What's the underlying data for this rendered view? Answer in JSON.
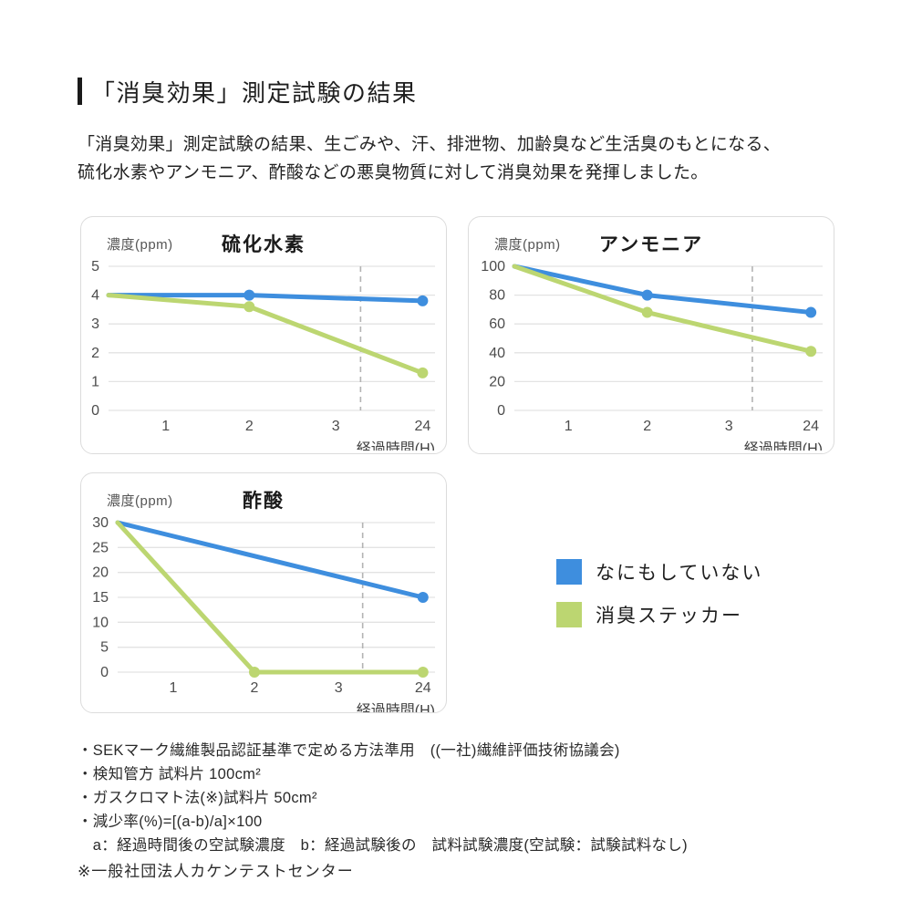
{
  "header": {
    "title": "「消臭効果」測定試験の結果"
  },
  "intro": {
    "line1": "「消臭効果」測定試験の結果、生ごみや、汗、排泄物、加齢臭など生活臭のもとになる、",
    "line2": "硫化水素やアンモニア、酢酸などの悪臭物質に対して消臭効果を発揮しました。"
  },
  "colors": {
    "untreated_blue": "#3e8ede",
    "sticker_green": "#bcd671",
    "accent_bar": "#1a1a1a",
    "gridline": "#e3e3e3",
    "dashed_guide": "#b3b3b3"
  },
  "chart_data": [
    {
      "type": "line",
      "title": "硫化水素",
      "y_axis_label": "濃度(ppm)",
      "x_axis_label": "経過時間(H)",
      "x_ticks": [
        "1",
        "2",
        "3",
        "24"
      ],
      "y_ticks": [
        0,
        1,
        2,
        3,
        4,
        5
      ],
      "ylim": [
        0,
        5
      ],
      "grid": true,
      "dashed_guide": "vertical dashed line between 3 and 24 (time-axis break)",
      "series": [
        {
          "name": "なにもしていない",
          "color": "#3e8ede",
          "points": [
            {
              "t": "start",
              "v": 4
            },
            {
              "t": "2",
              "v": 4
            },
            {
              "t": "24",
              "v": 3.8
            }
          ],
          "markers": [
            "2",
            "24"
          ]
        },
        {
          "name": "消臭ステッカー",
          "color": "#bcd671",
          "points": [
            {
              "t": "start",
              "v": 4
            },
            {
              "t": "2",
              "v": 3.6
            },
            {
              "t": "24",
              "v": 1.3
            }
          ],
          "markers": [
            "2",
            "24"
          ]
        }
      ]
    },
    {
      "type": "line",
      "title": "アンモニア",
      "y_axis_label": "濃度(ppm)",
      "x_axis_label": "経過時間(H)",
      "x_ticks": [
        "1",
        "2",
        "3",
        "24"
      ],
      "y_ticks": [
        0,
        20,
        40,
        60,
        80,
        100
      ],
      "ylim": [
        0,
        100
      ],
      "grid": true,
      "dashed_guide": "vertical dashed line between 3 and 24 (time-axis break)",
      "series": [
        {
          "name": "なにもしていない",
          "color": "#3e8ede",
          "points": [
            {
              "t": "start",
              "v": 100
            },
            {
              "t": "2",
              "v": 80
            },
            {
              "t": "24",
              "v": 68
            }
          ],
          "markers": [
            "2",
            "24"
          ]
        },
        {
          "name": "消臭ステッカー",
          "color": "#bcd671",
          "points": [
            {
              "t": "start",
              "v": 100
            },
            {
              "t": "2",
              "v": 68
            },
            {
              "t": "24",
              "v": 41
            }
          ],
          "markers": [
            "2",
            "24"
          ]
        }
      ]
    },
    {
      "type": "line",
      "title": "酢酸",
      "y_axis_label": "濃度(ppm)",
      "x_axis_label": "経過時間(H)",
      "x_ticks": [
        "1",
        "2",
        "3",
        "24"
      ],
      "y_ticks": [
        0,
        5,
        10,
        15,
        20,
        25,
        30
      ],
      "ylim": [
        0,
        30
      ],
      "grid": true,
      "dashed_guide": "vertical dashed line between 3 and 24 (time-axis break)",
      "series": [
        {
          "name": "なにもしていない",
          "color": "#3e8ede",
          "points": [
            {
              "t": "start",
              "v": 30
            },
            {
              "t": "24",
              "v": 15
            }
          ],
          "markers": [
            "24"
          ]
        },
        {
          "name": "消臭ステッカー",
          "color": "#bcd671",
          "points": [
            {
              "t": "start",
              "v": 30
            },
            {
              "t": "2",
              "v": 0
            },
            {
              "t": "24",
              "v": 0
            }
          ],
          "markers": [
            "2",
            "24"
          ]
        }
      ]
    }
  ],
  "legend": {
    "items": [
      {
        "label": "なにもしていない",
        "color": "#3e8ede"
      },
      {
        "label": "消臭ステッカー",
        "color": "#bcd671"
      }
    ]
  },
  "notes": {
    "lines": [
      "・SEKマーク繊維製品認証基準で定める方法準用　((一社)繊維評価技術協議会)",
      "・検知管方 試料片 100cm²",
      "・ガスクロマト法(※)試料片 50cm²",
      "・減少率(%)=[(a-b)/a]×100",
      "　a：経過時間後の空試験濃度　b：経過試験後の　試料試験濃度(空試験：試験試料なし)"
    ],
    "bottom": "※一般社団法人カケンテストセンター"
  }
}
